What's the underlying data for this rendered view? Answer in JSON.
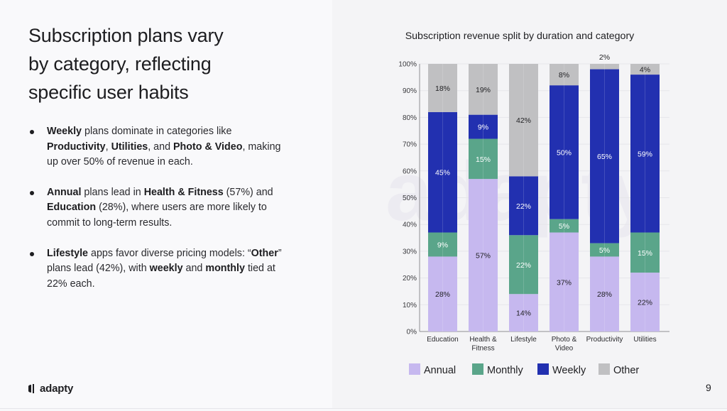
{
  "slide": {
    "headline": [
      "Subscription plans vary",
      "by category, reflecting",
      "specific user habits"
    ],
    "bullets": [
      {
        "parts": [
          {
            "text": "Weekly",
            "bold": true
          },
          {
            "text": " plans dominate in categories like ",
            "bold": false
          },
          {
            "text": "Productivity",
            "bold": true
          },
          {
            "text": ", ",
            "bold": false
          },
          {
            "text": "Utilities",
            "bold": true
          },
          {
            "text": ", and ",
            "bold": false
          },
          {
            "text": "Photo & Video",
            "bold": true
          },
          {
            "text": ", making up over 50% of revenue in each.",
            "bold": false
          }
        ]
      },
      {
        "parts": [
          {
            "text": "Annual",
            "bold": true
          },
          {
            "text": " plans lead in ",
            "bold": false
          },
          {
            "text": "Health & Fitness",
            "bold": true
          },
          {
            "text": " (57%) and ",
            "bold": false
          },
          {
            "text": "Education",
            "bold": true
          },
          {
            "text": " (28%), where users are more likely to commit to long-term results.",
            "bold": false
          }
        ]
      },
      {
        "parts": [
          {
            "text": "Lifestyle",
            "bold": true
          },
          {
            "text": " apps favor diverse pricing models: “",
            "bold": false
          },
          {
            "text": "Other",
            "bold": true
          },
          {
            "text": "” plans lead (42%), with ",
            "bold": false
          },
          {
            "text": "weekly",
            "bold": true
          },
          {
            "text": " and ",
            "bold": false
          },
          {
            "text": "monthly",
            "bold": true
          },
          {
            "text": " tied at 22% each.",
            "bold": false
          }
        ]
      }
    ],
    "logo_text": "adapty",
    "watermark_text": "adapty",
    "page_number": "9"
  },
  "colors": {
    "Annual": "#c6b8ef",
    "Monthly": "#5aa58a",
    "Weekly": "#2230b0",
    "Other": "#c0c0c2"
  },
  "chart_data": {
    "type": "bar",
    "stacked": true,
    "title": "Subscription revenue split by duration and category",
    "xlabel": "",
    "ylabel": "",
    "ylim": [
      0,
      100
    ],
    "yticks": [
      "0%",
      "10%",
      "20%",
      "30%",
      "40%",
      "50%",
      "60%",
      "70%",
      "80%",
      "90%",
      "100%"
    ],
    "grid": true,
    "legend_position": "bottom",
    "categories": [
      [
        "Education"
      ],
      [
        "Health &",
        "Fitness"
      ],
      [
        "Lifestyle"
      ],
      [
        "Photo &",
        "Video"
      ],
      [
        "Productivity"
      ],
      [
        "Utilities"
      ]
    ],
    "series": [
      {
        "name": "Annual",
        "values": [
          28,
          57,
          14,
          37,
          28,
          22
        ],
        "label_color": "#1f1f22"
      },
      {
        "name": "Monthly",
        "values": [
          9,
          15,
          22,
          5,
          5,
          15
        ],
        "label_color": "#ffffff"
      },
      {
        "name": "Weekly",
        "values": [
          45,
          9,
          22,
          50,
          65,
          59
        ],
        "label_color": "#ffffff"
      },
      {
        "name": "Other",
        "values": [
          18,
          19,
          42,
          8,
          2,
          4
        ],
        "label_color": "#1f1f22"
      }
    ]
  }
}
